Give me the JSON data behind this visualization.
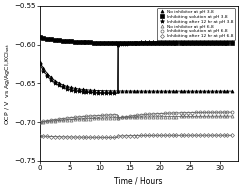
{
  "xlabel": "Time / Hours",
  "xlim": [
    0,
    33
  ],
  "ylim": [
    -0.75,
    -0.55
  ],
  "yticks": [
    -0.75,
    -0.7,
    -0.65,
    -0.6,
    -0.55
  ],
  "xticks": [
    0,
    5,
    10,
    15,
    20,
    25,
    30
  ],
  "legend_pH38": [
    "No inhibitor at pH 3.8",
    "Inhibiting solution at pH 3.8",
    "Inhibiting after 12 hr at pH 3.8"
  ],
  "legend_pH68": [
    "No inhibitor at pH 6.8",
    "Inhibiting solution at pH 6.8",
    "Inhibiting after 12 hr at pH 6.8"
  ]
}
